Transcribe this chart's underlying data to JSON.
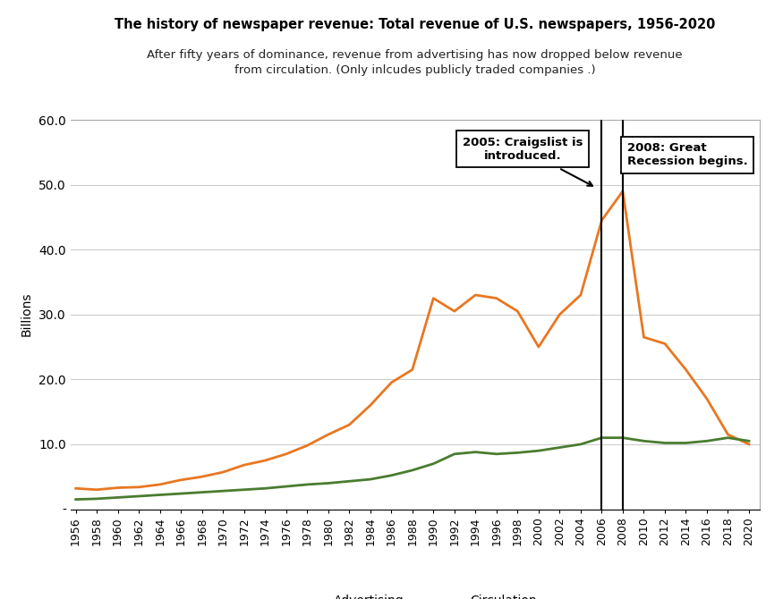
{
  "title": "The history of newspaper revenue: Total revenue of U.S. newspapers, 1956-2020",
  "subtitle": "After fifty years of dominance, revenue from advertising has now dropped below revenue\nfrom circulation. (Only inlcudes publicly traded companies .)",
  "ylabel": "Billions",
  "adv_years": [
    1956,
    1958,
    1960,
    1962,
    1964,
    1966,
    1968,
    1970,
    1972,
    1974,
    1976,
    1978,
    1980,
    1982,
    1984,
    1986,
    1988,
    1990,
    1992,
    1994,
    1996,
    1998,
    2000,
    2002,
    2004,
    2006,
    2008,
    2010,
    2012,
    2014,
    2016,
    2018,
    2020
  ],
  "adv_values": [
    3.2,
    3.0,
    3.3,
    3.4,
    3.8,
    4.5,
    5.0,
    5.7,
    6.8,
    7.5,
    8.5,
    9.8,
    11.5,
    13.0,
    16.0,
    19.5,
    21.5,
    32.5,
    30.5,
    33.0,
    32.5,
    30.5,
    25.0,
    30.0,
    33.0,
    44.5,
    49.0,
    26.5,
    25.5,
    21.5,
    17.0,
    11.5,
    10.0
  ],
  "circ_values": [
    1.5,
    1.6,
    1.8,
    2.0,
    2.2,
    2.4,
    2.6,
    2.8,
    3.0,
    3.2,
    3.5,
    3.8,
    4.0,
    4.3,
    4.6,
    5.2,
    6.0,
    7.0,
    8.5,
    8.8,
    8.5,
    8.7,
    9.0,
    9.5,
    10.0,
    11.0,
    11.0,
    10.5,
    10.2,
    10.2,
    10.5,
    11.0,
    10.5
  ],
  "adv_color": "#E87722",
  "circ_color": "#4A7C2F",
  "vline_1": 2006,
  "vline_2": 2008,
  "ylim": [
    0,
    60
  ],
  "annotation_craigslist_text": "2005: Craigslist is\nintroduced.",
  "annotation_recession_text": "2008: Great\nRecession begins.",
  "bg_color": "#FFFFFF",
  "grid_color": "#CCCCCC",
  "border_color": "#AAAAAA"
}
